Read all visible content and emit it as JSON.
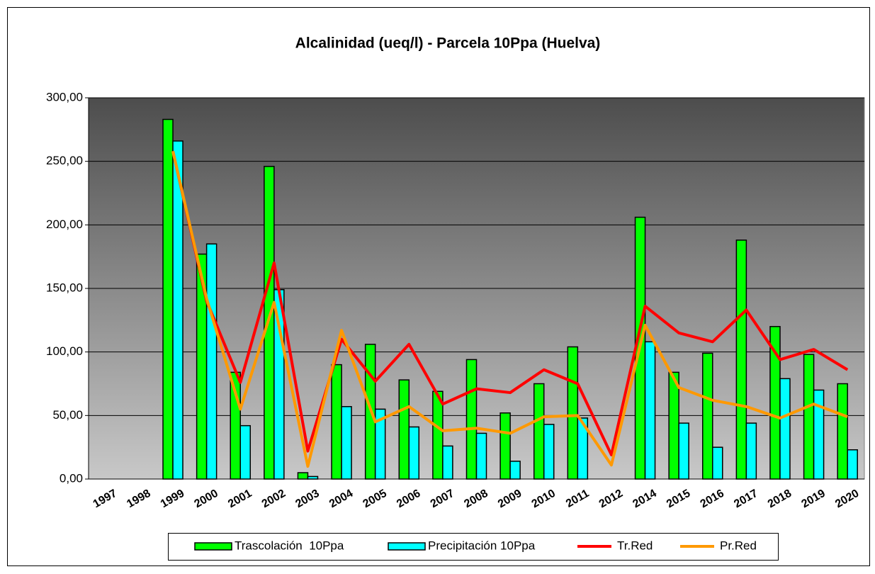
{
  "chart_data": {
    "type": "bar",
    "title": "Alcalinidad (ueq/l) - Parcela 10Ppa (Huelva)",
    "categories": [
      "1997",
      "1998",
      "1999",
      "2000",
      "2001",
      "2002",
      "2003",
      "2004",
      "2005",
      "2006",
      "2007",
      "2008",
      "2009",
      "2010",
      "2011",
      "2012",
      "2014",
      "2015",
      "2016",
      "2017",
      "2018",
      "2019",
      "2020"
    ],
    "series": [
      {
        "name": "Trascolación  10Ppa",
        "type": "bar",
        "color": "#00ff00",
        "values": [
          null,
          null,
          283,
          177,
          84,
          246,
          5,
          90,
          106,
          78,
          69,
          94,
          52,
          75,
          104,
          null,
          206,
          84,
          99,
          188,
          120,
          98,
          75
        ]
      },
      {
        "name": "Precipitación 10Ppa",
        "type": "bar",
        "color": "#00ffff",
        "values": [
          null,
          null,
          266,
          185,
          42,
          149,
          2,
          57,
          55,
          41,
          26,
          36,
          14,
          43,
          48,
          null,
          108,
          44,
          25,
          44,
          79,
          70,
          23
        ]
      },
      {
        "name": "Tr.Red",
        "type": "line",
        "color": "#ff0000",
        "values": [
          null,
          null,
          258,
          140,
          76,
          170,
          22,
          110,
          77,
          106,
          59,
          71,
          68,
          86,
          75,
          19,
          136,
          115,
          108,
          133,
          94,
          102,
          86
        ]
      },
      {
        "name": "Pr.Red",
        "type": "line",
        "color": "#ff9900",
        "values": [
          null,
          null,
          258,
          142,
          55,
          139,
          10,
          117,
          45,
          57,
          38,
          40,
          36,
          49,
          50,
          11,
          121,
          72,
          62,
          57,
          48,
          59,
          49
        ]
      }
    ],
    "ylim": [
      0,
      300
    ],
    "yticks": [
      {
        "value": 0,
        "label": "0,00"
      },
      {
        "value": 50,
        "label": "50,00"
      },
      {
        "value": 100,
        "label": "100,00"
      },
      {
        "value": 150,
        "label": "150,00"
      },
      {
        "value": 200,
        "label": "200,00"
      },
      {
        "value": 250,
        "label": "250,00"
      },
      {
        "value": 300,
        "label": "300,00"
      }
    ],
    "grid": true
  }
}
